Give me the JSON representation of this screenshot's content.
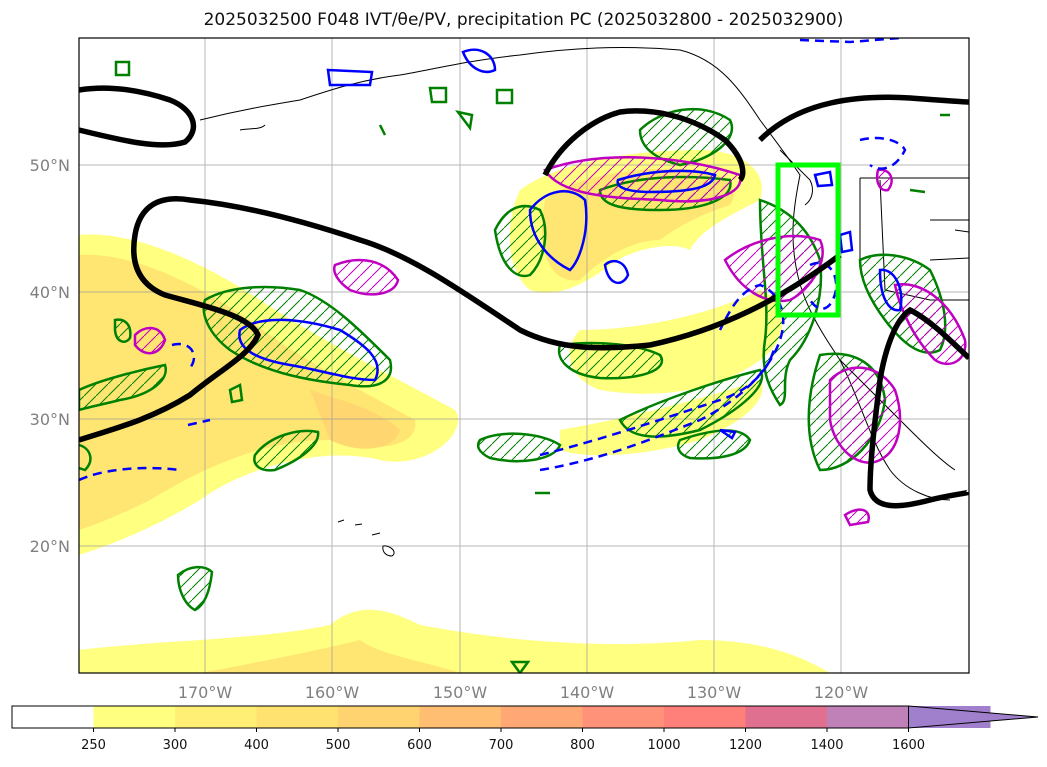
{
  "title": "2025032500 F048 IVT/θe/PV, precipitation PC (2025032800 - 2025032900)",
  "map": {
    "lon_ticks": [
      {
        "lon": -170,
        "label": "170°W"
      },
      {
        "lon": -160,
        "label": "160°W"
      },
      {
        "lon": -150,
        "label": "150°W"
      },
      {
        "lon": -140,
        "label": "140°W"
      },
      {
        "lon": -130,
        "label": "130°W"
      },
      {
        "lon": -120,
        "label": "120°W"
      }
    ],
    "lat_ticks": [
      {
        "lat": 20,
        "label": "20°N"
      },
      {
        "lat": 30,
        "label": "30°N"
      },
      {
        "lat": 40,
        "label": "40°N"
      },
      {
        "lat": 50,
        "label": "50°N"
      }
    ],
    "extent": {
      "lon_min": -180,
      "lon_max": -110,
      "lat_min": 10,
      "lat_max": 60
    },
    "highlight_box": {
      "lon_min": -125,
      "lon_max": -120,
      "lat_min": 38,
      "lat_max": 50,
      "color": "#00ff00"
    }
  },
  "colorbar": {
    "levels": [
      "250",
      "300",
      "400",
      "500",
      "600",
      "700",
      "800",
      "1000",
      "1200",
      "1400",
      "1600"
    ],
    "colors": [
      "#ffffff",
      "#ffff80",
      "#fff075",
      "#ffe270",
      "#ffd470",
      "#ffbe72",
      "#ffa875",
      "#ff9278",
      "#ff807a",
      "#e07090",
      "#c080b8",
      "#a080cc"
    ]
  },
  "colors": {
    "theta_e": "#000000",
    "pv": "#008000",
    "pv_neg": "#0000ff",
    "precip": "#c000c0",
    "coast": "#000000"
  }
}
